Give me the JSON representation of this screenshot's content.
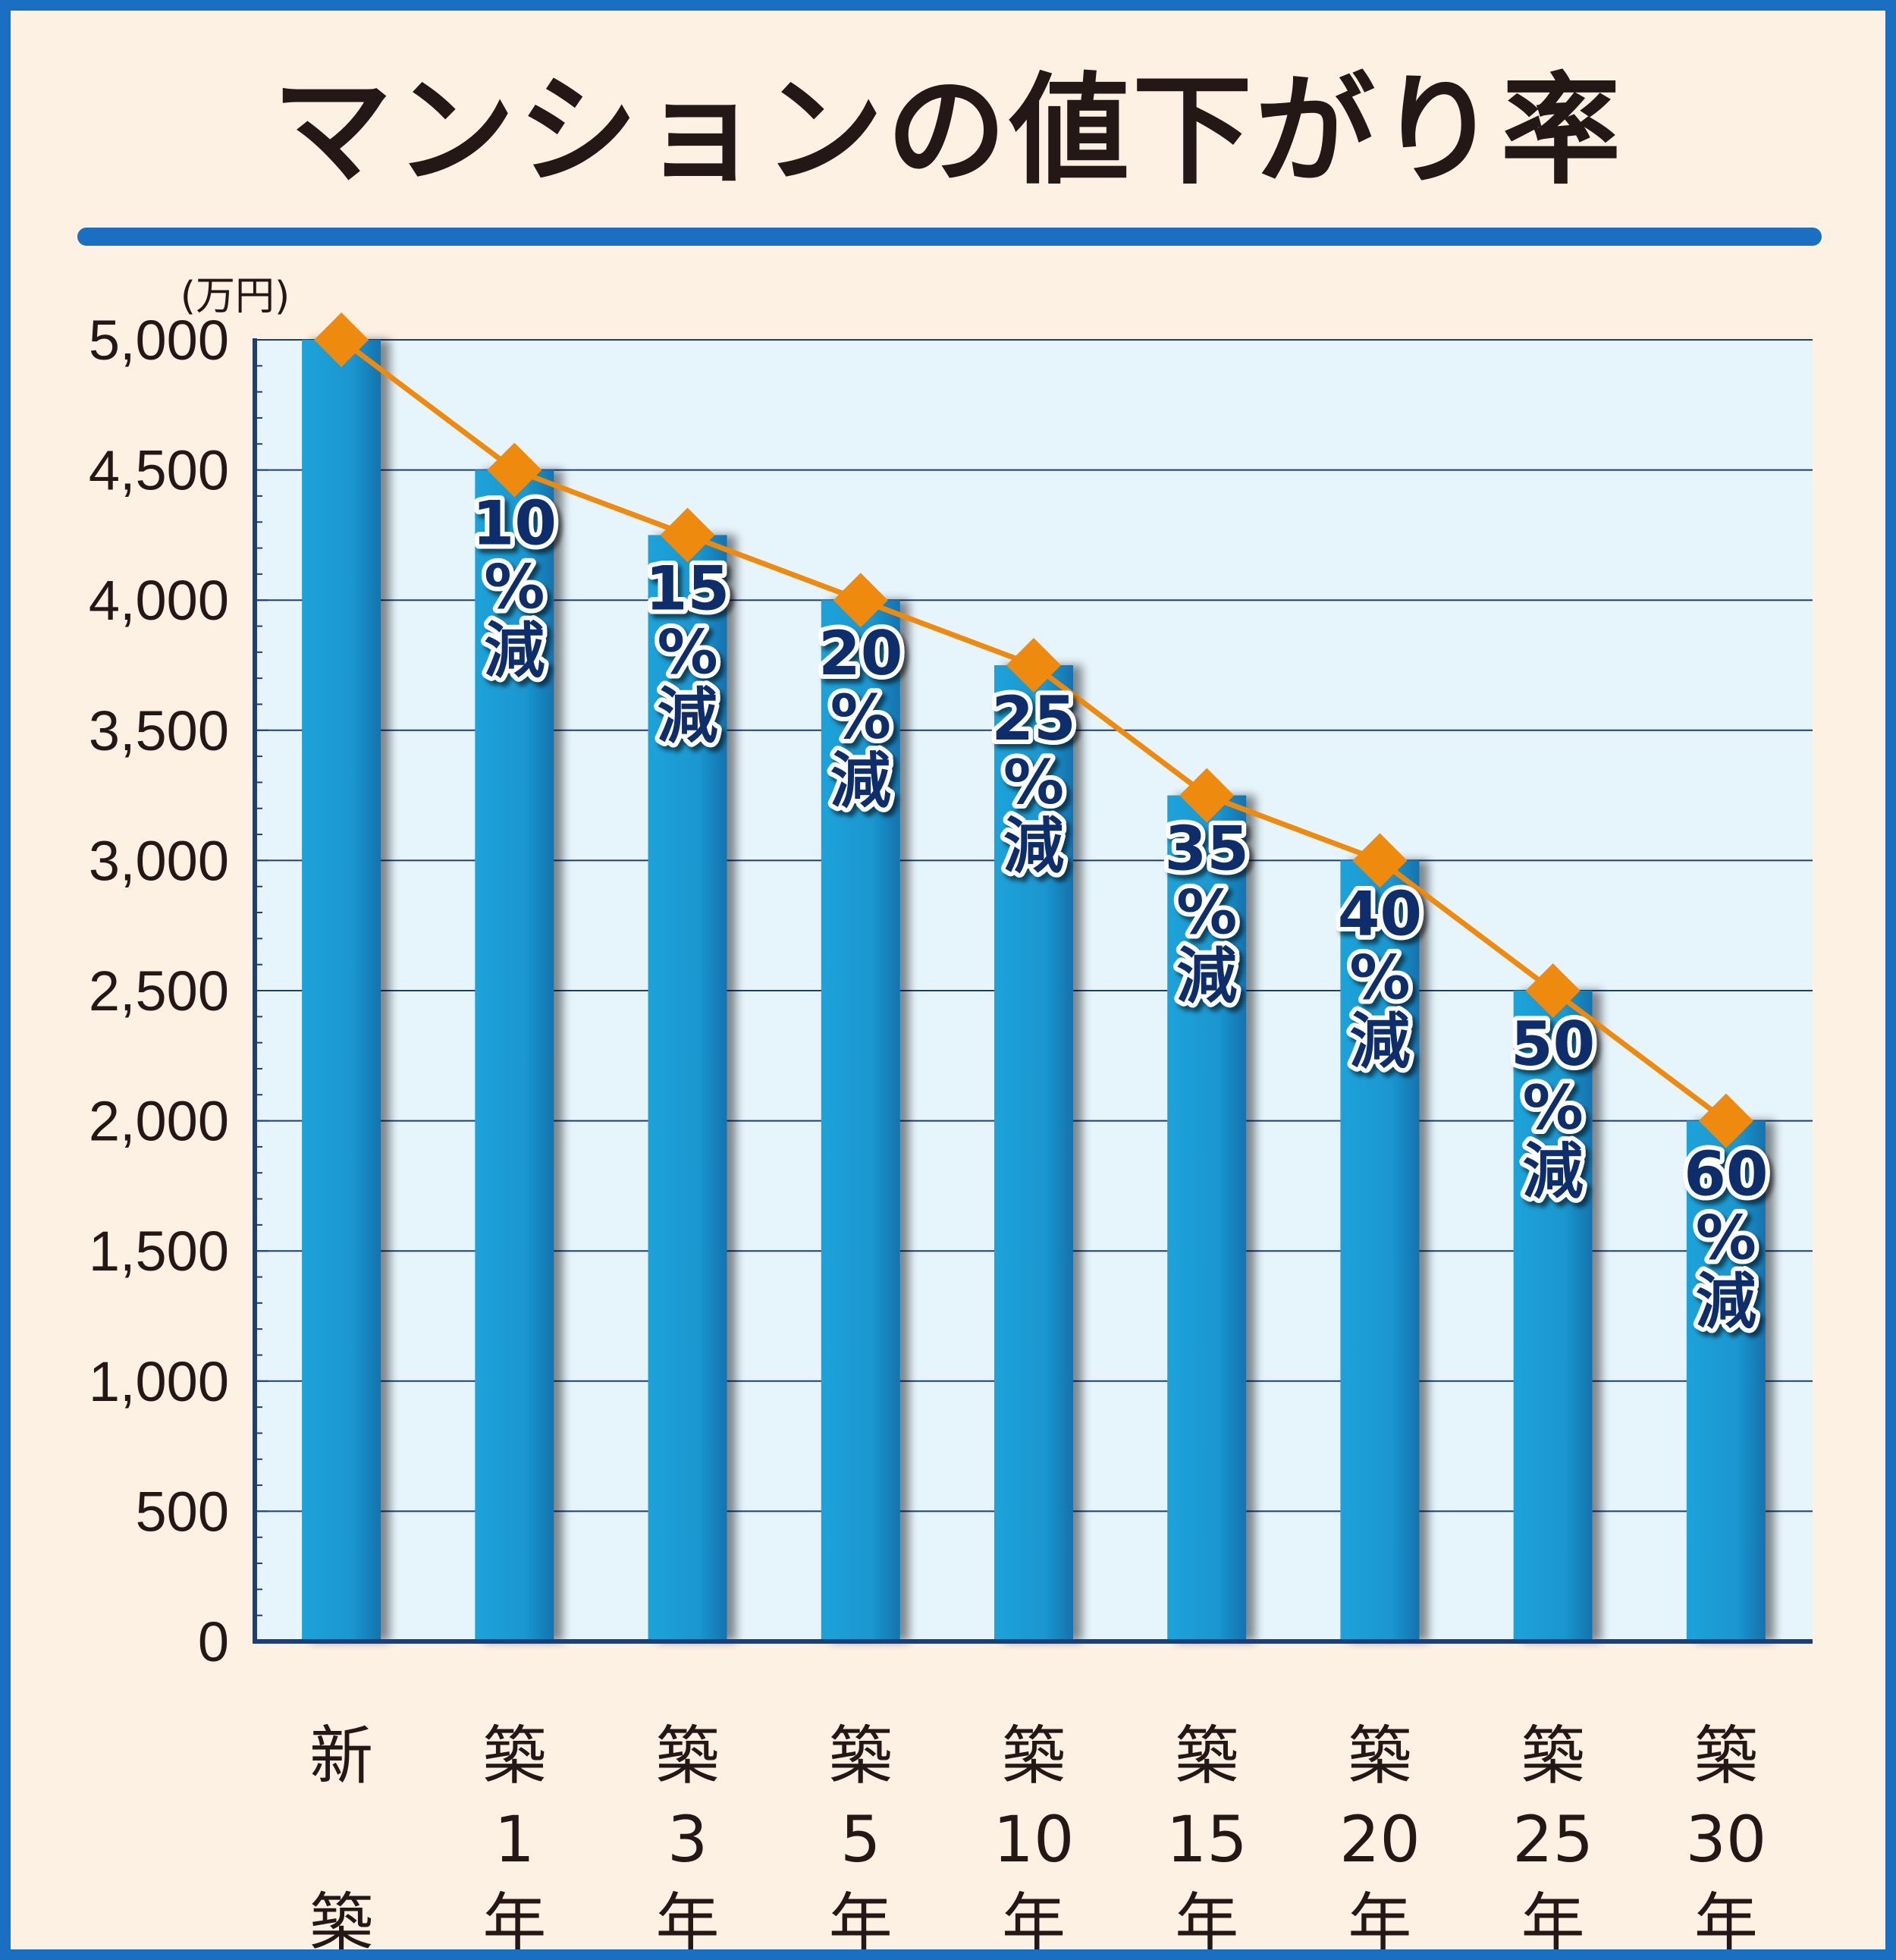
{
  "chart_data": {
    "type": "bar",
    "title": "マンションの値下がり率",
    "ylabel": "(万円)",
    "xlabel": "",
    "ylim": [
      0,
      5000
    ],
    "yticks": [
      0,
      500,
      1000,
      1500,
      2000,
      2500,
      3000,
      3500,
      4000,
      4500,
      5000
    ],
    "ytick_labels": [
      "0",
      "500",
      "1,000",
      "1,500",
      "2,000",
      "2,500",
      "3,000",
      "3,500",
      "4,000",
      "4,500",
      "5,000"
    ],
    "grid": true,
    "categories": [
      [
        "新",
        "",
        "築"
      ],
      [
        "築",
        "1",
        "年"
      ],
      [
        "築",
        "3",
        "年"
      ],
      [
        "築",
        "5",
        "年"
      ],
      [
        "築",
        "10",
        "年"
      ],
      [
        "築",
        "15",
        "年"
      ],
      [
        "築",
        "20",
        "年"
      ],
      [
        "築",
        "25",
        "年"
      ],
      [
        "築",
        "30",
        "年"
      ]
    ],
    "values": [
      5000,
      4500,
      4250,
      4000,
      3750,
      3250,
      3000,
      2500,
      2000
    ],
    "annotations": [
      null,
      [
        "10",
        "%",
        "減"
      ],
      [
        "15",
        "%",
        "減"
      ],
      [
        "20",
        "%",
        "減"
      ],
      [
        "25",
        "%",
        "減"
      ],
      [
        "35",
        "%",
        "減"
      ],
      [
        "40",
        "%",
        "減"
      ],
      [
        "50",
        "%",
        "減"
      ],
      [
        "60",
        "%",
        "減"
      ]
    ],
    "overlay": {
      "type": "line",
      "marker": "diamond",
      "values": [
        5000,
        4500,
        4250,
        4000,
        3750,
        3250,
        3000,
        2500,
        2000
      ]
    },
    "colors": {
      "bar": "#1a9bd1",
      "bar_dark": "#1272ad",
      "line": "#ee8a0e",
      "plot_bg": "#e6f4fc",
      "grid": "#1c3f7a",
      "axis": "#1c3f7a",
      "annotation": "#0e2f6b",
      "frame": "#1b6fc2",
      "page_bg": "#fdf1e4"
    }
  }
}
